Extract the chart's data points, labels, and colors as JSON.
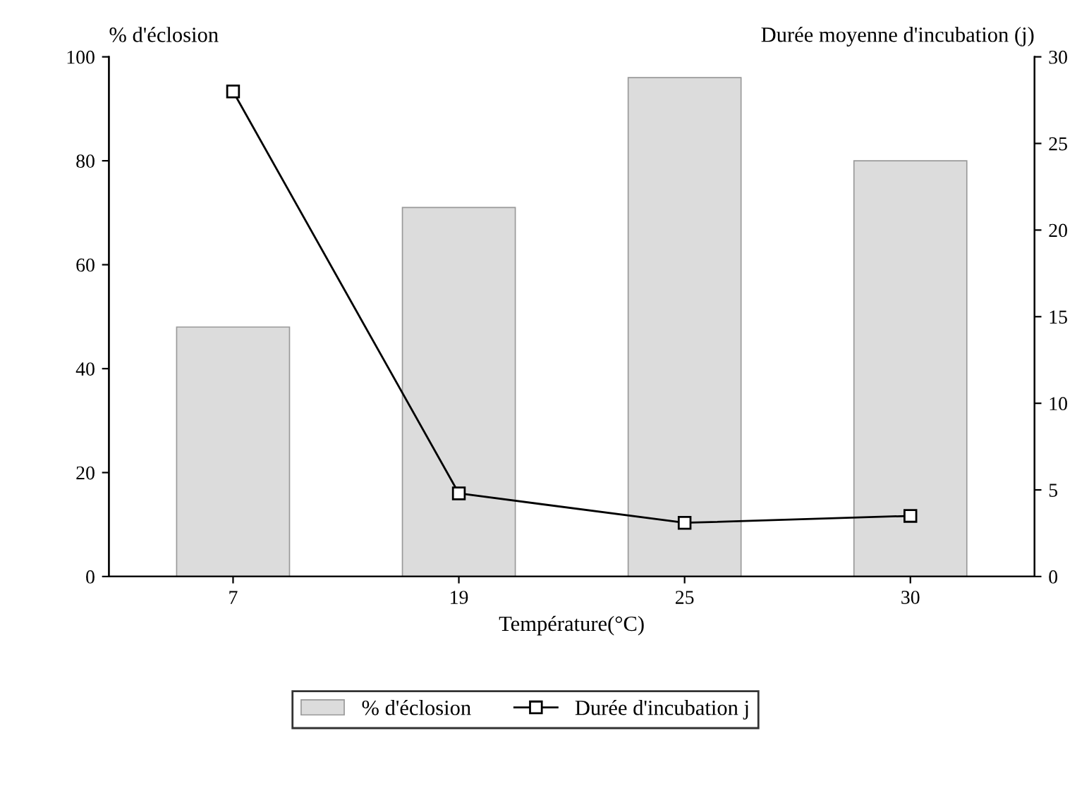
{
  "chart_data": {
    "type": "bar",
    "xlabel": "Température(°C)",
    "ylabel": "% d'éclosion",
    "y2label": "Durée moyenne d'incubation (j)",
    "categories": [
      "7",
      "19",
      "25",
      "30"
    ],
    "series": [
      {
        "name": "% d'éclosion",
        "color": "#dcdcdc",
        "values": [
          48,
          71,
          96,
          80
        ]
      },
      {
        "name": "Durée d'incubation j",
        "type": "line",
        "axis": "y2",
        "color": "#000000",
        "marker": "square",
        "values": [
          28,
          4.8,
          3.1,
          3.5
        ]
      }
    ],
    "ylim": [
      0,
      100
    ],
    "yticks": [
      0,
      20,
      40,
      60,
      80,
      100
    ],
    "y2lim": [
      0,
      30
    ],
    "y2ticks": [
      0,
      5,
      10,
      15,
      20,
      25,
      30
    ],
    "grid": false,
    "legend": "bottom"
  }
}
